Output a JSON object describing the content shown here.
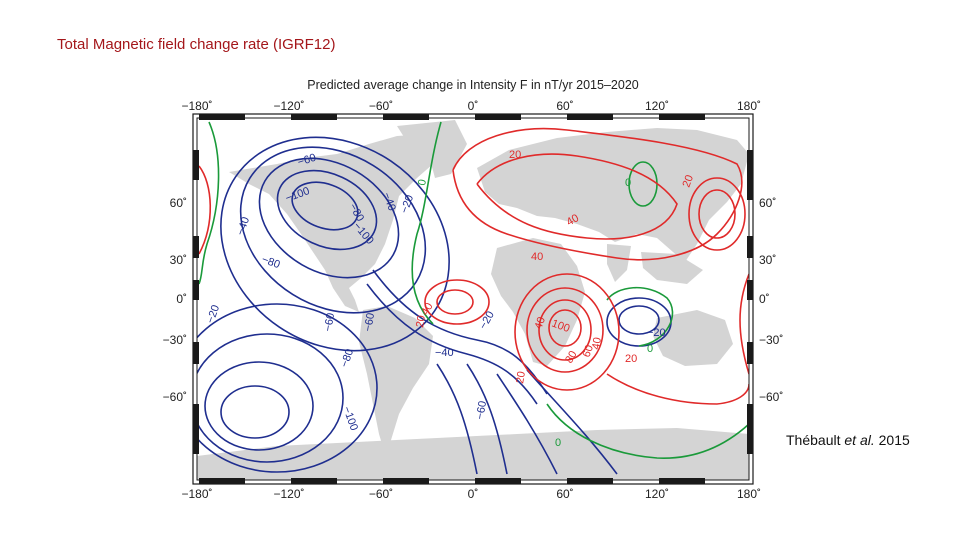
{
  "slide": {
    "title": "Total Magnetic field change rate (IGRF12)",
    "citation_author": "Thébault",
    "citation_etal": "et al.",
    "citation_year": "2015"
  },
  "map": {
    "caption": "Predicted average change in Intensity F in nT/yr 2015–2020",
    "lon_ticks": [
      "−180˚",
      "−120˚",
      "−60˚",
      "0˚",
      "60˚",
      "120˚",
      "180˚"
    ],
    "lat_ticks": [
      "60˚",
      "30˚",
      "0˚",
      "−30˚",
      "−60˚"
    ],
    "colors": {
      "positive": "#e02a2a",
      "negative": "#1f2e8f",
      "zero": "#1a9a3a",
      "land": "#d4d4d4",
      "frame": "#1a1a1a"
    },
    "contour_labels": [
      {
        "text": "−60",
        "color": "negative"
      },
      {
        "text": "−100",
        "color": "negative"
      },
      {
        "text": "−80",
        "color": "negative"
      },
      {
        "text": "−40",
        "color": "negative"
      },
      {
        "text": "−100",
        "color": "negative"
      },
      {
        "text": "−40",
        "color": "negative"
      },
      {
        "text": "−20",
        "color": "negative"
      },
      {
        "text": "0",
        "color": "zero"
      },
      {
        "text": "−80",
        "color": "negative"
      },
      {
        "text": "−20",
        "color": "negative"
      },
      {
        "text": "−60",
        "color": "negative"
      },
      {
        "text": "−60",
        "color": "negative"
      },
      {
        "text": "−80",
        "color": "negative"
      },
      {
        "text": "−100",
        "color": "negative"
      },
      {
        "text": "−20",
        "color": "negative"
      },
      {
        "text": "−40",
        "color": "negative"
      },
      {
        "text": "−60",
        "color": "negative"
      },
      {
        "text": "20",
        "color": "positive"
      },
      {
        "text": "40",
        "color": "positive"
      },
      {
        "text": "40",
        "color": "positive"
      },
      {
        "text": "0",
        "color": "zero"
      },
      {
        "text": "20",
        "color": "positive"
      },
      {
        "text": "40",
        "color": "positive"
      },
      {
        "text": "20",
        "color": "positive"
      },
      {
        "text": "40",
        "color": "positive"
      },
      {
        "text": "100",
        "color": "positive"
      },
      {
        "text": "80",
        "color": "positive"
      },
      {
        "text": "60",
        "color": "positive"
      },
      {
        "text": "40",
        "color": "positive"
      },
      {
        "text": "20",
        "color": "positive"
      },
      {
        "text": "0",
        "color": "zero"
      },
      {
        "text": "−20",
        "color": "negative"
      },
      {
        "text": "20",
        "color": "positive"
      },
      {
        "text": "0",
        "color": "zero"
      }
    ]
  }
}
